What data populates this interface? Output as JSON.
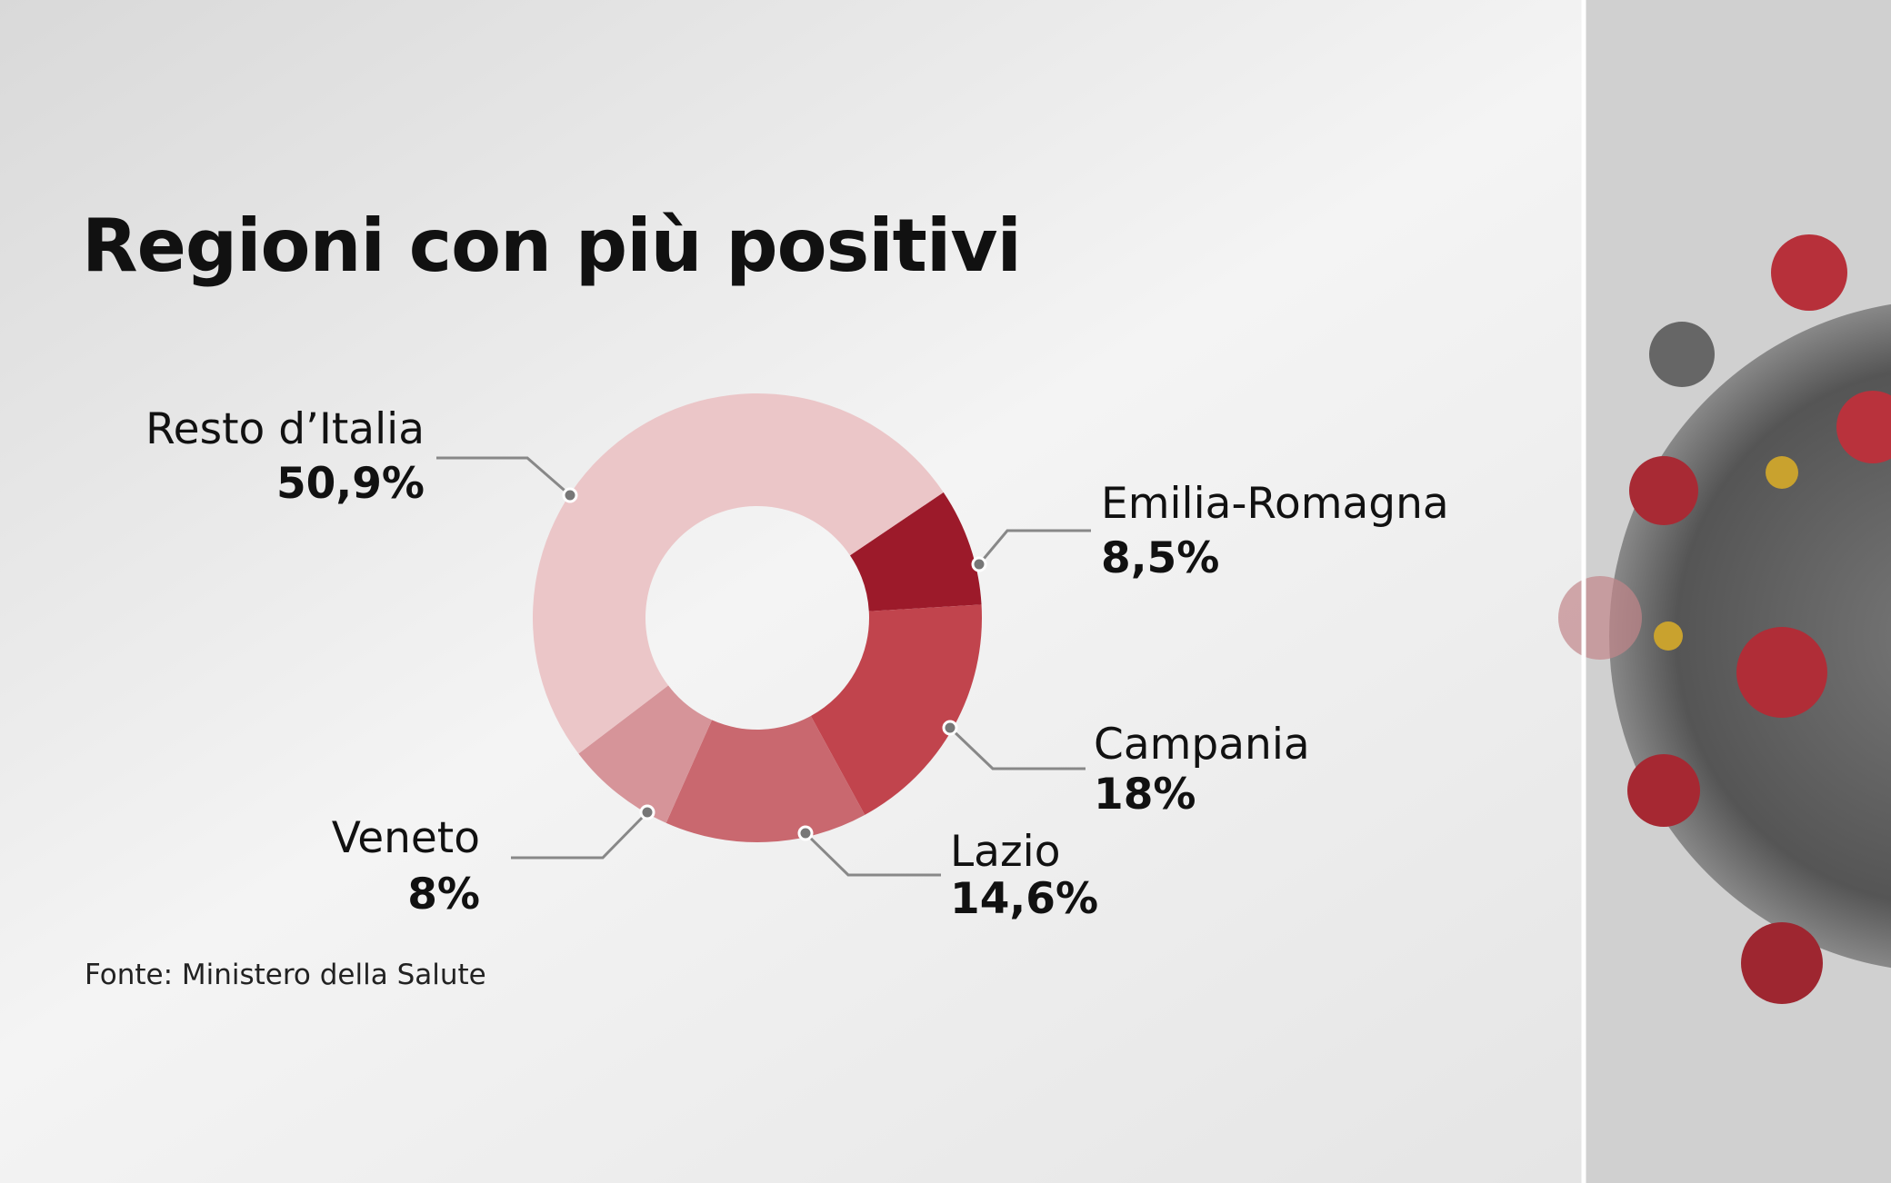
{
  "chart_data": {
    "type": "donut",
    "title": "Regioni con più positivi",
    "categories": [
      "Emilia-Romagna",
      "Campania",
      "Lazio",
      "Veneto",
      "Resto d’Italia"
    ],
    "values": [
      8.5,
      18,
      14.6,
      8,
      50.9
    ],
    "value_labels": [
      "8,5%",
      "18%",
      "14,6%",
      "8%",
      "50,9%"
    ],
    "colors": [
      "#9c1a2a",
      "#c1444d",
      "#c9686f",
      "#d69499",
      "#ebc6c8"
    ],
    "source": "Fonte: Ministero della Salute"
  }
}
